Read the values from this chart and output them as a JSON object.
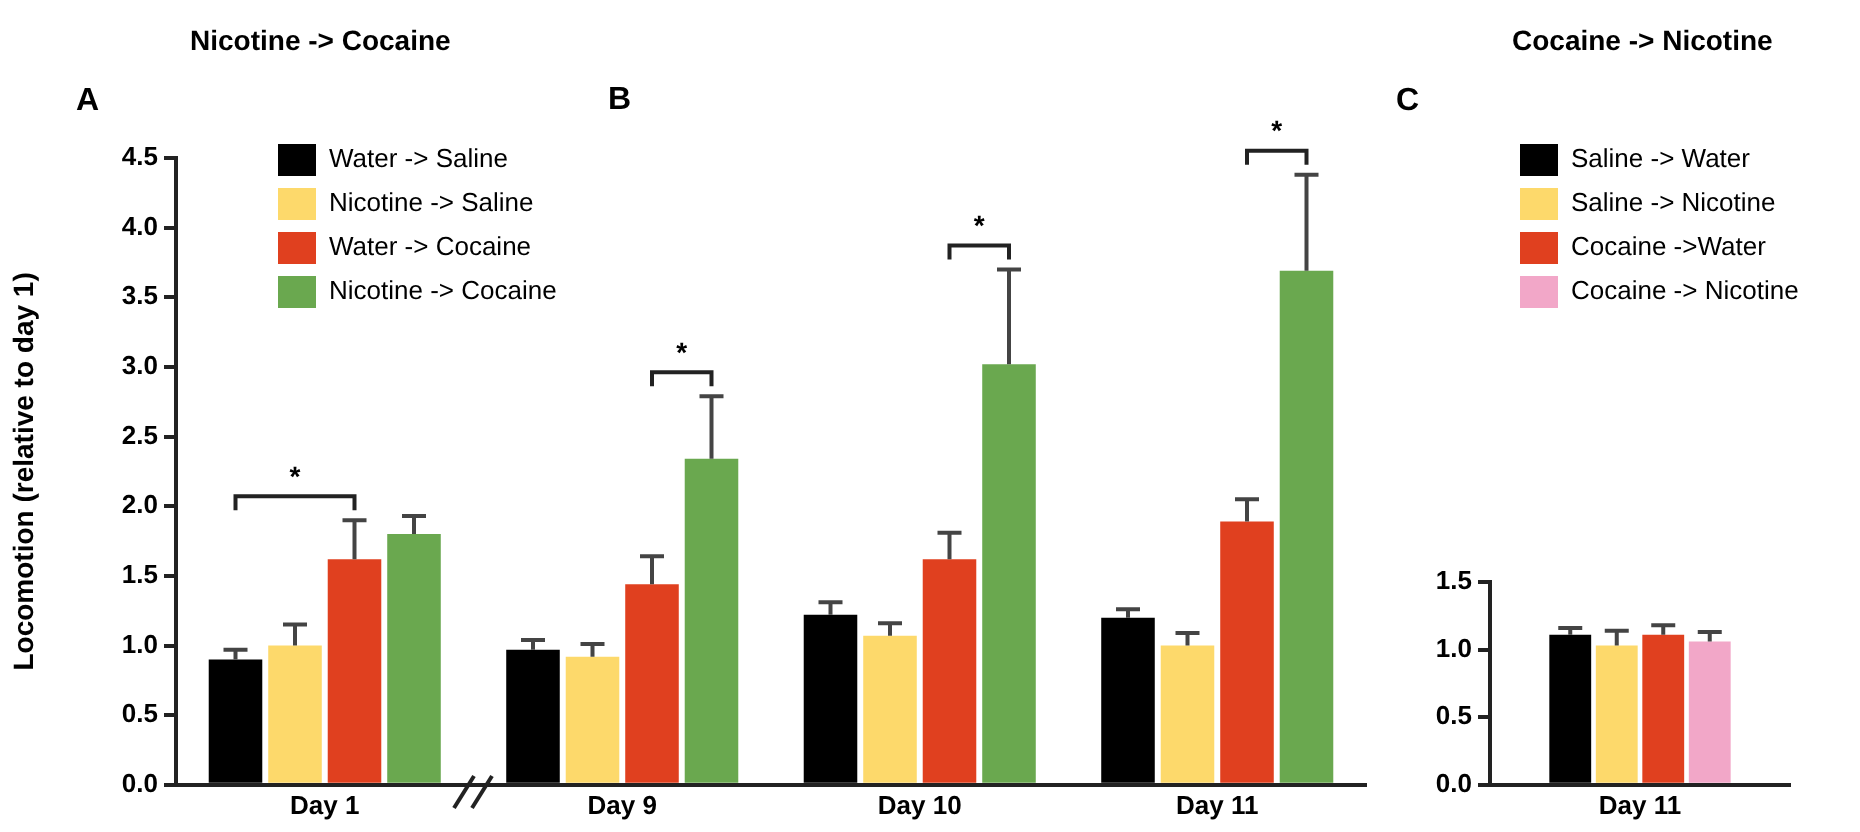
{
  "chart_data": [
    {
      "type": "bar",
      "title": "Nicotine -> Cocaine",
      "subtitle": "A",
      "ylabel": "Locomotion (relative to day 1)",
      "categories": [
        "Day 1",
        "Day 9",
        "Day 10",
        "Day 11"
      ],
      "series": [
        {
          "name": "Water -> Saline",
          "color": "#000000",
          "values": [
            0.9,
            0.97,
            1.22,
            1.2
          ],
          "errors": [
            [
              0.9,
              0.97
            ],
            [
              0.97,
              1.04
            ],
            [
              1.22,
              1.31
            ],
            [
              1.2,
              1.26
            ]
          ]
        },
        {
          "name": "Nicotine -> Saline",
          "color": "#fdd96b",
          "values": [
            1.0,
            0.92,
            1.07,
            1.0
          ],
          "errors": [
            [
              1.0,
              1.15
            ],
            [
              0.92,
              1.01
            ],
            [
              1.07,
              1.16
            ],
            [
              1.0,
              1.09
            ]
          ]
        },
        {
          "name": "Water -> Cocaine",
          "color": "#e0401f",
          "values": [
            1.62,
            1.44,
            1.62,
            1.89
          ],
          "errors": [
            [
              1.62,
              1.9
            ],
            [
              1.44,
              1.64
            ],
            [
              1.62,
              1.81
            ],
            [
              1.89,
              2.05
            ]
          ]
        },
        {
          "name": "Nicotine -> Cocaine",
          "color": "#6aa84f",
          "values": [
            1.8,
            2.34,
            3.02,
            3.69
          ],
          "errors": [
            [
              1.8,
              1.93
            ],
            [
              2.34,
              2.79
            ],
            [
              3.02,
              3.7
            ],
            [
              3.69,
              4.38
            ]
          ]
        }
      ],
      "ylim": [
        0,
        4.5
      ],
      "yticks": [
        {
          "value": 0,
          "label": "0.0"
        },
        0.5,
        {
          "value": 1,
          "label": "1.0"
        },
        1.5,
        {
          "value": 2,
          "label": "2.0"
        },
        2.5,
        {
          "value": 3,
          "label": "3.0"
        },
        3.5,
        {
          "value": 4,
          "label": "4.0"
        },
        4.5
      ],
      "legend": "top",
      "annotations": [
        "B",
        "*",
        "*",
        "*",
        "*"
      ]
    },
    {
      "type": "bar",
      "title": "Cocaine -> Nicotine",
      "subtitle": "C",
      "categories": [
        "Day 11"
      ],
      "series": [
        {
          "name": "Saline -> Water",
          "color": "#000000",
          "values": [
            1.11
          ],
          "errors": [
            [
              1.11,
              1.16
            ]
          ]
        },
        {
          "name": "Saline -> Nicotine",
          "color": "#fdd96b",
          "values": [
            1.03
          ],
          "errors": [
            [
              1.03,
              1.14
            ]
          ]
        },
        {
          "name": "Cocaine ->Water",
          "color": "#e0401f",
          "values": [
            1.11
          ],
          "errors": [
            [
              1.11,
              1.18
            ]
          ]
        },
        {
          "name": "Cocaine -> Nicotine",
          "color": "#f2a7c8",
          "values": [
            1.06
          ],
          "errors": [
            [
              1.06,
              1.13
            ]
          ]
        }
      ],
      "ylim": [
        0,
        1.5
      ],
      "yticks": [
        {
          "value": 0,
          "label": "0.0"
        },
        0.5,
        {
          "value": 1,
          "label": "1.0"
        },
        1.5
      ],
      "legend": "top"
    }
  ]
}
